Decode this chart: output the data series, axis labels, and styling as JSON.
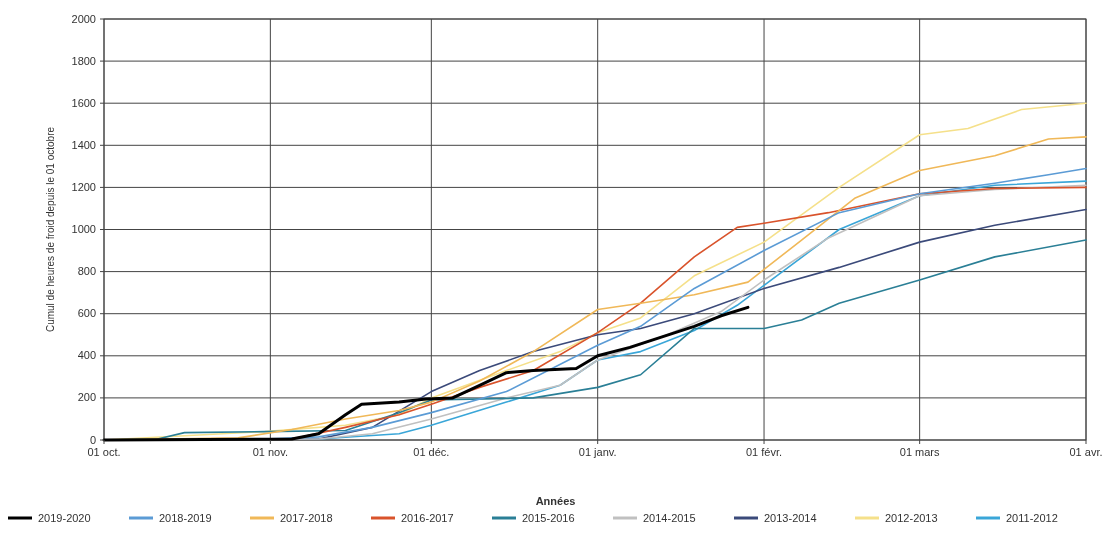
{
  "chart_data": {
    "type": "line",
    "ylabel": "Cumul de heures de froid depuis le 01 octobre",
    "legend_title": "Années",
    "xlim": [
      "2019-10-01",
      "2020-04-01"
    ],
    "xticks": [
      {
        "value": "2019-10-01",
        "label": "01 oct."
      },
      {
        "value": "2019-11-01",
        "label": "01 nov."
      },
      {
        "value": "2019-12-01",
        "label": "01 déc."
      },
      {
        "value": "2020-01-01",
        "label": "01 janv."
      },
      {
        "value": "2020-02-01",
        "label": "01 févr."
      },
      {
        "value": "2020-03-01",
        "label": "01 mars"
      },
      {
        "value": "2020-04-01",
        "label": "01 avr."
      }
    ],
    "ylim": [
      0,
      2000
    ],
    "yticks": [
      0,
      200,
      400,
      600,
      800,
      1000,
      1200,
      1400,
      1600,
      1800,
      2000
    ],
    "grid": true,
    "legend": "bottom",
    "line_style": "solid",
    "marker": "none",
    "series": [
      {
        "name": "2019-2020",
        "color": "#000000",
        "x": [
          "2019-10-01",
          "2019-11-05",
          "2019-11-10",
          "2019-11-15",
          "2019-11-18",
          "2019-11-25",
          "2019-11-30",
          "2019-12-05",
          "2019-12-10",
          "2019-12-15",
          "2019-12-20",
          "2019-12-28",
          "2020-01-01",
          "2020-01-07",
          "2020-01-13",
          "2020-01-19",
          "2020-01-24",
          "2020-01-29"
        ],
        "values": [
          0,
          5,
          30,
          120,
          170,
          180,
          195,
          200,
          260,
          320,
          330,
          340,
          400,
          440,
          490,
          540,
          590,
          630
        ]
      },
      {
        "name": "2018-2019",
        "color": "#5b9bd5",
        "x": [
          "2019-10-01",
          "2019-10-31",
          "2019-11-10",
          "2019-11-20",
          "2019-12-01",
          "2019-12-15",
          "2020-01-01",
          "2020-01-09",
          "2020-01-19",
          "2020-02-01",
          "2020-02-15",
          "2020-03-01",
          "2020-03-15",
          "2020-03-25",
          "2020-04-01"
        ],
        "values": [
          0,
          5,
          15,
          60,
          130,
          230,
          450,
          540,
          720,
          900,
          1080,
          1170,
          1220,
          1260,
          1290
        ]
      },
      {
        "name": "2017-2018",
        "color": "#f0b858",
        "x": [
          "2019-10-01",
          "2019-10-26",
          "2019-11-05",
          "2019-11-15",
          "2019-11-25",
          "2019-12-01",
          "2019-12-10",
          "2019-12-20",
          "2020-01-01",
          "2020-01-09",
          "2020-01-19",
          "2020-01-29",
          "2020-02-08",
          "2020-02-18",
          "2020-03-01",
          "2020-03-15",
          "2020-03-25",
          "2020-04-01"
        ],
        "values": [
          0,
          10,
          50,
          100,
          140,
          180,
          280,
          420,
          620,
          650,
          690,
          750,
          950,
          1150,
          1280,
          1350,
          1430,
          1440
        ]
      },
      {
        "name": "2016-2017",
        "color": "#d9532b",
        "x": [
          "2019-10-01",
          "2019-11-05",
          "2019-11-15",
          "2019-11-25",
          "2019-12-01",
          "2019-12-10",
          "2019-12-20",
          "2020-01-01",
          "2020-01-09",
          "2020-01-19",
          "2020-01-27",
          "2020-02-01",
          "2020-02-13",
          "2020-03-01",
          "2020-03-15",
          "2020-04-01"
        ],
        "values": [
          0,
          5,
          60,
          120,
          170,
          250,
          330,
          510,
          650,
          870,
          1010,
          1030,
          1080,
          1170,
          1195,
          1200
        ]
      },
      {
        "name": "2015-2016",
        "color": "#2a7f96",
        "x": [
          "2019-10-01",
          "2019-10-11",
          "2019-10-16",
          "2019-10-31",
          "2019-11-15",
          "2019-11-25",
          "2019-12-01",
          "2019-12-20",
          "2020-01-01",
          "2020-01-09",
          "2020-01-19",
          "2020-02-01",
          "2020-02-08",
          "2020-02-15",
          "2020-03-01",
          "2020-03-15",
          "2020-04-01"
        ],
        "values": [
          0,
          5,
          35,
          40,
          45,
          130,
          190,
          200,
          250,
          310,
          530,
          530,
          570,
          650,
          760,
          870,
          950
        ]
      },
      {
        "name": "2014-2015",
        "color": "#c0c0c0",
        "x": [
          "2019-10-01",
          "2019-11-10",
          "2019-11-20",
          "2019-12-01",
          "2019-12-15",
          "2019-12-25",
          "2020-01-01",
          "2020-01-14",
          "2020-01-24",
          "2020-02-01",
          "2020-02-13",
          "2020-03-01",
          "2020-03-15",
          "2020-04-01"
        ],
        "values": [
          0,
          5,
          30,
          100,
          200,
          260,
          380,
          500,
          610,
          760,
          960,
          1160,
          1190,
          1210
        ]
      },
      {
        "name": "2013-2014",
        "color": "#3b4a7a",
        "x": [
          "2019-10-01",
          "2019-11-10",
          "2019-11-20",
          "2019-12-01",
          "2019-12-10",
          "2019-12-20",
          "2020-01-01",
          "2020-01-09",
          "2020-01-19",
          "2020-02-01",
          "2020-02-15",
          "2020-03-01",
          "2020-03-15",
          "2020-04-01"
        ],
        "values": [
          0,
          5,
          60,
          230,
          330,
          420,
          500,
          530,
          600,
          720,
          820,
          940,
          1020,
          1095
        ]
      },
      {
        "name": "2012-2013",
        "color": "#f5e08a",
        "x": [
          "2019-10-01",
          "2019-10-31",
          "2019-11-15",
          "2019-11-25",
          "2019-12-01",
          "2019-12-15",
          "2019-12-25",
          "2020-01-01",
          "2020-01-09",
          "2020-01-19",
          "2020-02-01",
          "2020-02-15",
          "2020-03-01",
          "2020-03-10",
          "2020-03-20",
          "2020-04-01"
        ],
        "values": [
          0,
          40,
          70,
          120,
          200,
          330,
          420,
          510,
          580,
          780,
          940,
          1200,
          1450,
          1480,
          1570,
          1600
        ]
      },
      {
        "name": "2011-2012",
        "color": "#3aa6d8",
        "x": [
          "2019-10-01",
          "2019-11-10",
          "2019-11-25",
          "2019-12-01",
          "2019-12-15",
          "2019-12-25",
          "2020-01-01",
          "2020-01-09",
          "2020-01-19",
          "2020-01-27",
          "2020-02-01",
          "2020-02-15",
          "2020-03-01",
          "2020-03-15",
          "2020-04-01"
        ],
        "values": [
          0,
          5,
          30,
          70,
          180,
          260,
          380,
          420,
          520,
          640,
          735,
          1000,
          1160,
          1210,
          1230
        ]
      }
    ]
  }
}
